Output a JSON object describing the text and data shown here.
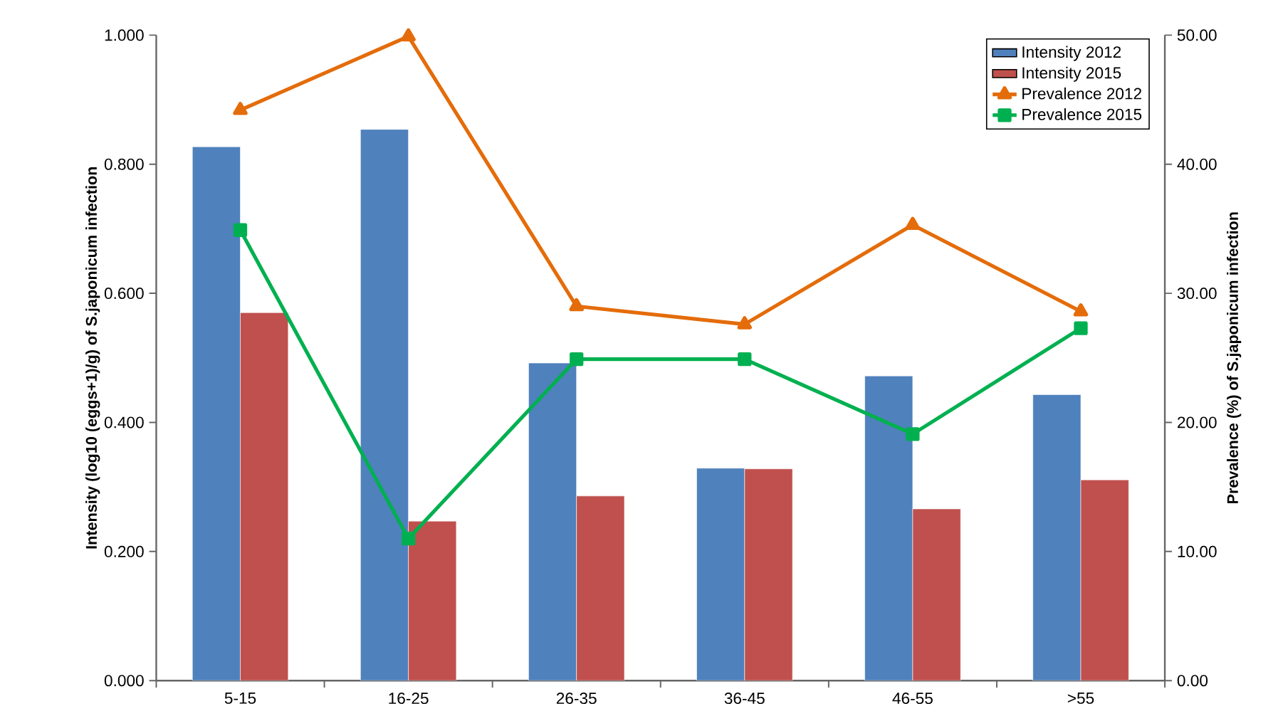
{
  "chart_data": {
    "type": "bar",
    "categories": [
      "5-15",
      "16-25",
      "26-35",
      "36-45",
      "46-55",
      ">55"
    ],
    "series": [
      {
        "name": "Intensity 2012",
        "color": "#4f81bd",
        "values": [
          0.827,
          0.854,
          0.492,
          0.329,
          0.472,
          0.443
        ]
      },
      {
        "name": "Intensity 2015",
        "color": "#c0504d",
        "values": [
          0.57,
          0.247,
          0.286,
          0.328,
          0.266,
          0.311
        ]
      },
      {
        "name": "Prevalence 2012",
        "type": "line",
        "axis": "y2",
        "marker": "triangle",
        "color": "#e46c0a",
        "values": [
          44.2,
          49.9,
          29.0,
          27.6,
          35.3,
          28.6
        ]
      },
      {
        "name": "Prevalence 2015",
        "type": "line",
        "axis": "y2",
        "marker": "square",
        "color": "#00b050",
        "values": [
          34.9,
          11.0,
          24.9,
          24.9,
          19.1,
          27.3
        ]
      }
    ],
    "ylabel": "Intensity (log10 (eggs+1)/g) of S.japonicum infection",
    "y2label": "Prevalence (%) of S.japonicum infection",
    "ylim": [
      0,
      1
    ],
    "y2lim": [
      0,
      50
    ],
    "yticks": [
      {
        "value": 0,
        "label": "0.000"
      },
      {
        "value": 0.2,
        "label": "0.200"
      },
      {
        "value": 0.4,
        "label": "0.400"
      },
      {
        "value": 0.6,
        "label": "0.600"
      },
      {
        "value": 0.8,
        "label": "0.800"
      },
      {
        "value": 1,
        "label": "1.000"
      }
    ],
    "y2ticks": [
      {
        "value": 0,
        "label": "0.00"
      },
      {
        "value": 10,
        "label": "10.00"
      },
      {
        "value": 20,
        "label": "20.00"
      },
      {
        "value": 30,
        "label": "30.00"
      },
      {
        "value": 40,
        "label": "40.00"
      },
      {
        "value": 50,
        "label": "50.00"
      }
    ],
    "legend": "top right"
  }
}
